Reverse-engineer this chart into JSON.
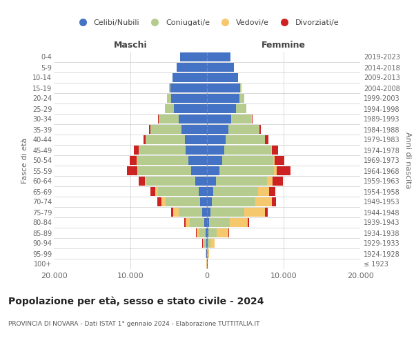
{
  "age_groups": [
    "100+",
    "95-99",
    "90-94",
    "85-89",
    "80-84",
    "75-79",
    "70-74",
    "65-69",
    "60-64",
    "55-59",
    "50-54",
    "45-49",
    "40-44",
    "35-39",
    "30-34",
    "25-29",
    "20-24",
    "15-19",
    "10-14",
    "5-9",
    "0-4"
  ],
  "birth_years": [
    "≤ 1923",
    "1924-1928",
    "1929-1933",
    "1934-1938",
    "1939-1943",
    "1944-1948",
    "1949-1953",
    "1954-1958",
    "1959-1963",
    "1964-1968",
    "1969-1973",
    "1974-1978",
    "1979-1983",
    "1984-1988",
    "1989-1993",
    "1994-1998",
    "1999-2003",
    "2004-2008",
    "2009-2013",
    "2014-2018",
    "2019-2023"
  ],
  "males": {
    "celibi": [
      30,
      70,
      130,
      200,
      350,
      600,
      900,
      1100,
      1500,
      2100,
      2400,
      2800,
      2900,
      3300,
      3700,
      4300,
      4700,
      4800,
      4500,
      4000,
      3500
    ],
    "coniugati": [
      15,
      60,
      280,
      800,
      1900,
      3100,
      4500,
      5300,
      6400,
      6900,
      6700,
      6100,
      5100,
      4100,
      2600,
      1200,
      500,
      130,
      25,
      4,
      1
    ],
    "vedovi": [
      8,
      40,
      160,
      380,
      580,
      680,
      580,
      380,
      180,
      90,
      45,
      25,
      15,
      8,
      4,
      2,
      1,
      0,
      0,
      0,
      0
    ],
    "divorziati": [
      4,
      18,
      45,
      90,
      180,
      320,
      480,
      580,
      880,
      1350,
      950,
      580,
      280,
      130,
      70,
      25,
      8,
      4,
      1,
      0,
      0
    ]
  },
  "females": {
    "nubili": [
      25,
      45,
      90,
      180,
      260,
      450,
      650,
      780,
      1150,
      1650,
      1950,
      2250,
      2450,
      2750,
      3150,
      3750,
      4250,
      4350,
      4050,
      3550,
      3050
    ],
    "coniugate": [
      8,
      60,
      350,
      1100,
      2700,
      4400,
      5700,
      5900,
      6700,
      7100,
      6700,
      6100,
      5100,
      4100,
      2650,
      1380,
      580,
      185,
      38,
      4,
      1
    ],
    "vedove": [
      12,
      130,
      550,
      1500,
      2400,
      2700,
      2100,
      1450,
      750,
      380,
      190,
      95,
      45,
      25,
      12,
      4,
      1,
      0,
      0,
      0,
      0
    ],
    "divorziate": [
      2,
      18,
      45,
      90,
      180,
      380,
      580,
      780,
      1350,
      1750,
      1250,
      870,
      380,
      190,
      95,
      38,
      12,
      4,
      1,
      0,
      0
    ]
  },
  "colors": {
    "celibi": "#4472C4",
    "coniugati": "#B5CC8E",
    "vedovi": "#F5C86E",
    "divorziati": "#CC2222"
  },
  "xlim": 20000,
  "xlabel_ticks": [
    -20000,
    -10000,
    0,
    10000,
    20000
  ],
  "xlabel_labels": [
    "20.000",
    "10.000",
    "0",
    "10.000",
    "20.000"
  ],
  "title": "Popolazione per età, sesso e stato civile - 2024",
  "subtitle": "PROVINCIA DI NOVARA - Dati ISTAT 1° gennaio 2024 - Elaborazione TUTTITALIA.IT",
  "ylabel_left": "Fasce di età",
  "ylabel_right": "Anni di nascita",
  "label_maschi": "Maschi",
  "label_femmine": "Femmine",
  "legend_labels": [
    "Celibi/Nubili",
    "Coniugati/e",
    "Vedovi/e",
    "Divorziati/e"
  ],
  "background_color": "#FFFFFF",
  "grid_color": "#CCCCCC"
}
